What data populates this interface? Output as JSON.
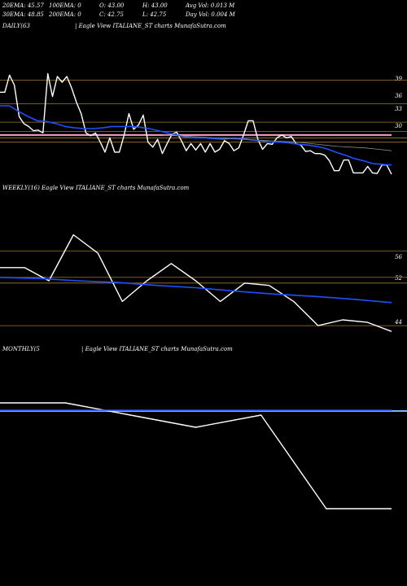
{
  "header": {
    "row1": [
      {
        "key": "ema20",
        "text": "20EMA: 45.57"
      },
      {
        "key": "ema100",
        "text": "100EMA: 0"
      },
      {
        "key": "open",
        "text": "O: 43.00"
      },
      {
        "key": "high",
        "text": "H: 43.00"
      },
      {
        "key": "avgvol",
        "text": "Avg Vol: 0.013 M"
      }
    ],
    "row2": [
      {
        "key": "ema30",
        "text": "30EMA: 48.85"
      },
      {
        "key": "ema200",
        "text": "200EMA: 0"
      },
      {
        "key": "close",
        "text": "C: 42.75"
      },
      {
        "key": "low",
        "text": "L: 42.75"
      },
      {
        "key": "dayvol",
        "text": "Day Vol: 0.004  M"
      }
    ]
  },
  "panels": {
    "daily": {
      "label": "DAILY(63",
      "title": "| Eagle   View  ITALIANE_ST charts MunafaSutra.com"
    },
    "weekly": {
      "label": "WEEKLY(16) Eagle   View  ITALIANE_ST charts MunafaSutra.com"
    },
    "monthly": {
      "label": "MONTHLY(5",
      "title": "| Eagle   View  ITALIANE_ST charts MunafaSutra.com"
    }
  },
  "colors": {
    "price": "#ffffff",
    "ema": "#1e50ff",
    "level": "#a0782a",
    "pink": "#ff9ec8",
    "lightblue": "#7fb0ff",
    "gray": "#888888"
  },
  "chart_data": [
    {
      "type": "line",
      "panel": "daily",
      "ylim": [
        26.0,
        41.4
      ],
      "y_ticks": [
        39,
        36,
        33,
        30
      ],
      "levels": [
        39.3,
        36.0,
        33.4,
        30.6,
        31.2,
        32.1
      ],
      "pink_level": 31.6,
      "series": [
        {
          "role": "price",
          "values": [
            37.6,
            37.6,
            40.0,
            38.6,
            34.2,
            33.2,
            32.8,
            32.2,
            32.3,
            31.9,
            40.2,
            37.0,
            39.8,
            39.0,
            39.8,
            38.2,
            36.2,
            34.6,
            31.9,
            31.5,
            31.9,
            30.6,
            29.2,
            31.2,
            29.2,
            29.2,
            31.6,
            34.6,
            32.4,
            33.0,
            34.4,
            30.6,
            29.9,
            31.0,
            29.0,
            30.4,
            31.7,
            32.0,
            30.8,
            29.4,
            30.4,
            29.5,
            30.4,
            29.2,
            30.4,
            29.2,
            29.6,
            30.8,
            30.4,
            29.4,
            29.8,
            31.6,
            33.6,
            33.6,
            31.0,
            29.6,
            30.4,
            30.3,
            31.2,
            31.6,
            31.2,
            31.4,
            30.4,
            30.2,
            29.3,
            29.4,
            29.0,
            29.0,
            28.8,
            28.0,
            26.6,
            26.6,
            28.1,
            28.1,
            26.3,
            26.3,
            26.3,
            27.2,
            26.3,
            26.2,
            27.4,
            27.4,
            26.1
          ]
        },
        {
          "role": "ema",
          "values": [
            35.7,
            35.7,
            34.9,
            34.2,
            33.6,
            33.5,
            33.2,
            32.8,
            32.6,
            32.5,
            32.5,
            32.6,
            32.8,
            32.8,
            32.8,
            32.7,
            32.5,
            32.2,
            31.9,
            31.6,
            31.3,
            31.2,
            31.2,
            31.1,
            31.0,
            31.2,
            31.1,
            30.9,
            30.8,
            30.6,
            30.6,
            30.5,
            30.3,
            30.2,
            30.0,
            29.7,
            29.2,
            28.8,
            28.3,
            28.0,
            27.6,
            27.5,
            27.4
          ]
        },
        {
          "role": "gray",
          "values": [
            31.6,
            31.5,
            31.4,
            31.3,
            31.2,
            31.1,
            31.0,
            30.9,
            30.8,
            30.7,
            30.6,
            30.4,
            30.2,
            30.0,
            29.9,
            29.8,
            29.6,
            29.4
          ]
        }
      ]
    },
    {
      "type": "line",
      "panel": "weekly",
      "ylim": [
        41.6,
        60.0
      ],
      "y_ticks": [
        56,
        52,
        44
      ],
      "levels": [
        56.0,
        51.4,
        50.4,
        43.0
      ],
      "series": [
        {
          "role": "price",
          "values": [
            53.1,
            53.1,
            50.8,
            58.8,
            55.6,
            47.2,
            50.8,
            53.8,
            50.8,
            47.2,
            50.4,
            50.0,
            47.2,
            43.0,
            44.0,
            43.6,
            42.0
          ]
        },
        {
          "role": "ema",
          "values": [
            51.4,
            51.2,
            50.8,
            50.5,
            50.0,
            49.6,
            49.0,
            48.5,
            48.1,
            47.6,
            47.0
          ]
        }
      ]
    },
    {
      "type": "line",
      "panel": "monthly",
      "ylim": [
        0,
        100
      ],
      "levels": [
        74.0
      ],
      "series": [
        {
          "role": "price",
          "values": [
            78.0,
            78.0,
            72.0,
            66.0,
            72.0,
            26.0,
            26.0
          ]
        },
        {
          "role": "ema",
          "values": [
            74.4,
            74.4
          ]
        }
      ]
    }
  ]
}
